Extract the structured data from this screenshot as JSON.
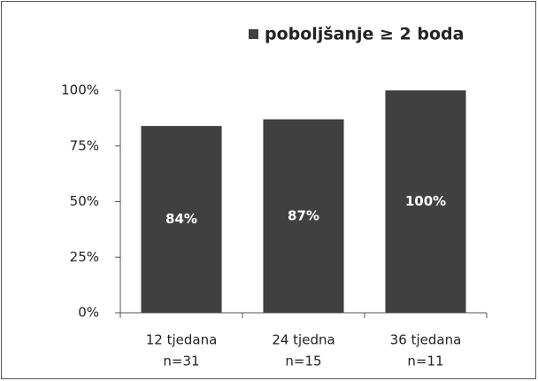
{
  "chart_data": {
    "type": "bar",
    "categories": [
      [
        "12 tjedana",
        "n=31"
      ],
      [
        "24 tjedna",
        "n=15"
      ],
      [
        "36 tjedana",
        "n=11"
      ]
    ],
    "series": [
      {
        "name": "poboljšanje ≥ 2 boda",
        "color": "#404040",
        "values": [
          84,
          87,
          100
        ],
        "value_labels": [
          "84%",
          "87%",
          "100%"
        ]
      }
    ],
    "ylim": [
      0,
      100
    ],
    "yticks": [
      {
        "value": 0,
        "label": "0%"
      },
      {
        "value": 25,
        "label": "25%"
      },
      {
        "value": 50,
        "label": "50%"
      },
      {
        "value": 75,
        "label": "75%"
      },
      {
        "value": 100,
        "label": "100%"
      }
    ],
    "legend": "top-right"
  }
}
